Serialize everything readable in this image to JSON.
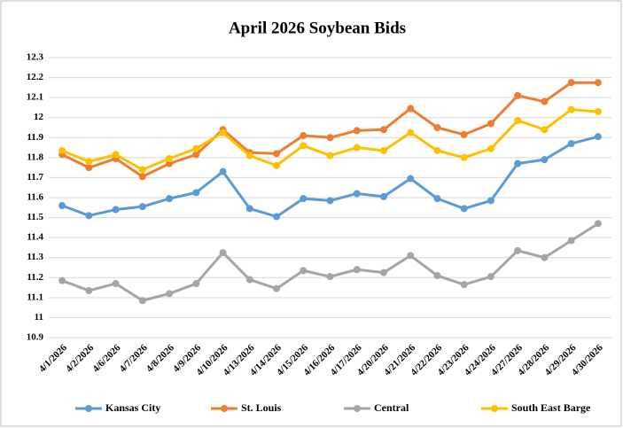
{
  "chart_data": {
    "type": "line",
    "title": "April 2026 Soybean Bids",
    "categories": [
      "4/1/2026",
      "4/2/2026",
      "4/6/2026",
      "4/7/2026",
      "4/8/2026",
      "4/9/2026",
      "4/10/2026",
      "4/13/2026",
      "4/14/2026",
      "4/15/2026",
      "4/16/2026",
      "4/17/2026",
      "4/20/2026",
      "4/21/2026",
      "4/22/2026",
      "4/23/2026",
      "4/24/2026",
      "4/27/2026",
      "4/28/2026",
      "4/29/2026",
      "4/30/2026"
    ],
    "series": [
      {
        "name": "Kansas City",
        "color": "#5b9bd5",
        "values": [
          11.56,
          11.51,
          11.54,
          11.555,
          11.595,
          11.625,
          11.73,
          11.545,
          11.505,
          11.595,
          11.585,
          11.62,
          11.605,
          11.695,
          11.595,
          11.545,
          11.585,
          11.77,
          11.79,
          11.87,
          11.905
        ]
      },
      {
        "name": "St. Louis",
        "color": "#ed7d31",
        "values": [
          11.815,
          11.75,
          11.795,
          11.705,
          11.77,
          11.815,
          11.94,
          11.825,
          11.82,
          11.91,
          11.9,
          11.935,
          11.94,
          12.045,
          11.95,
          11.915,
          11.97,
          12.11,
          12.08,
          12.175,
          12.175
        ]
      },
      {
        "name": "Central",
        "color": "#a5a5a5",
        "values": [
          11.185,
          11.135,
          11.17,
          11.085,
          11.12,
          11.17,
          11.325,
          11.19,
          11.145,
          11.235,
          11.205,
          11.24,
          11.225,
          11.31,
          11.21,
          11.165,
          11.205,
          11.335,
          11.3,
          11.385,
          11.47
        ]
      },
      {
        "name": "South East Barge",
        "color": "#ffc000",
        "values": [
          11.835,
          11.78,
          11.815,
          11.74,
          11.795,
          11.845,
          11.925,
          11.81,
          11.76,
          11.86,
          11.81,
          11.85,
          11.835,
          11.925,
          11.835,
          11.8,
          11.845,
          11.985,
          11.94,
          12.04,
          12.03
        ]
      }
    ],
    "ylim": [
      10.9,
      12.3
    ],
    "yticks": [
      10.9,
      11,
      11.1,
      11.2,
      11.3,
      11.4,
      11.5,
      11.6,
      11.7,
      11.8,
      11.9,
      12,
      12.1,
      12.2,
      12.3
    ],
    "grid": true,
    "legend": "bottom"
  }
}
